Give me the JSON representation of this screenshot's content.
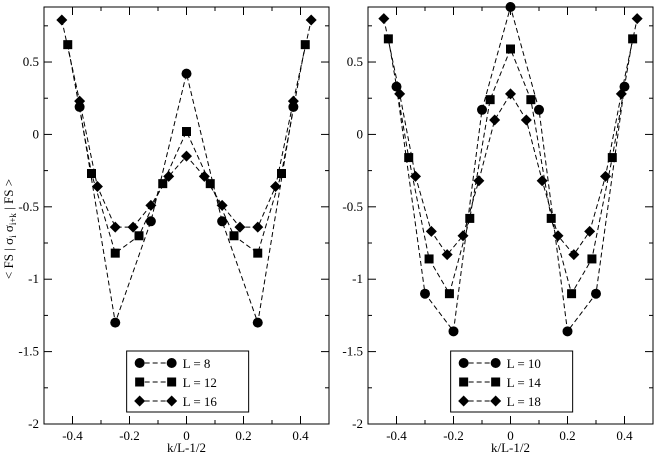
{
  "chart_data": {
    "type": "line",
    "ylabel": "< FS | σ i σ i+k | FS >",
    "ylabel_parts": {
      "pre": "< FS | σ",
      "sub1": "i",
      "mid": " σ",
      "sub2": "i+k",
      "post": " | FS >"
    },
    "panels": [
      {
        "xlabel": "k/L-1/2",
        "xlim": [
          -0.5,
          0.5
        ],
        "ylim": [
          -2,
          0.88
        ],
        "xticks": [
          -0.4,
          -0.2,
          0,
          0.2,
          0.4
        ],
        "xtick_labels": [
          "-0.4",
          "-0.2",
          "0",
          "0.2",
          "0.4"
        ],
        "yticks": [
          -2,
          -1.5,
          -1,
          -0.5,
          0,
          0.5
        ],
        "ytick_labels": [
          "-2",
          "-1.5",
          "-1",
          "-0.5",
          "0",
          "0.5"
        ],
        "legend_position": "bottom-center",
        "series": [
          {
            "name": "L = 8",
            "marker": "circle",
            "x": [
              -0.375,
              -0.25,
              -0.125,
              0,
              0.125,
              0.25,
              0.375
            ],
            "y": [
              0.19,
              -1.3,
              -0.6,
              0.42,
              -0.6,
              -1.3,
              0.19
            ]
          },
          {
            "name": "L = 12",
            "marker": "square",
            "x": [
              -0.41667,
              -0.33333,
              -0.25,
              -0.16667,
              -0.08333,
              0,
              0.08333,
              0.16667,
              0.25,
              0.33333,
              0.41667
            ],
            "y": [
              0.62,
              -0.27,
              -0.82,
              -0.7,
              -0.34,
              0.02,
              -0.34,
              -0.7,
              -0.82,
              -0.27,
              0.62
            ]
          },
          {
            "name": "L = 16",
            "marker": "diamond",
            "x": [
              -0.4375,
              -0.375,
              -0.3125,
              -0.25,
              -0.1875,
              -0.125,
              -0.0625,
              0,
              0.0625,
              0.125,
              0.1875,
              0.25,
              0.3125,
              0.375,
              0.4375
            ],
            "y": [
              0.79,
              0.23,
              -0.36,
              -0.64,
              -0.64,
              -0.49,
              -0.29,
              -0.15,
              -0.29,
              -0.49,
              -0.64,
              -0.64,
              -0.36,
              0.23,
              0.79
            ]
          }
        ]
      },
      {
        "xlabel": "k/L-1/2",
        "xlim": [
          -0.5,
          0.5
        ],
        "ylim": [
          -2,
          0.88
        ],
        "xticks": [
          -0.4,
          -0.2,
          0,
          0.2,
          0.4
        ],
        "xtick_labels": [
          "-0.4",
          "-0.2",
          "0",
          "0.2",
          "0.4"
        ],
        "yticks": [
          -2,
          -1.5,
          -1,
          -0.5,
          0,
          0.5
        ],
        "ytick_labels": [
          "-2",
          "-1.5",
          "-1",
          "-0.5",
          "0",
          "0.5"
        ],
        "legend_position": "bottom-center",
        "series": [
          {
            "name": "L = 10",
            "marker": "circle",
            "x": [
              -0.4,
              -0.3,
              -0.2,
              -0.1,
              0,
              0.1,
              0.2,
              0.3,
              0.4
            ],
            "y": [
              0.33,
              -1.1,
              -1.36,
              0.17,
              0.88,
              0.17,
              -1.36,
              -1.1,
              0.33
            ]
          },
          {
            "name": "L = 14",
            "marker": "square",
            "x": [
              -0.42857,
              -0.35714,
              -0.28571,
              -0.21429,
              -0.14286,
              -0.07143,
              0,
              0.07143,
              0.14286,
              0.21429,
              0.28571,
              0.35714,
              0.42857
            ],
            "y": [
              0.66,
              -0.16,
              -0.86,
              -1.1,
              -0.58,
              0.24,
              0.59,
              0.24,
              -0.58,
              -1.1,
              -0.86,
              -0.16,
              0.66
            ]
          },
          {
            "name": "L = 18",
            "marker": "diamond",
            "x": [
              -0.44444,
              -0.38889,
              -0.33333,
              -0.27778,
              -0.22222,
              -0.16667,
              -0.11111,
              -0.05556,
              0,
              0.05556,
              0.11111,
              0.16667,
              0.22222,
              0.27778,
              0.33333,
              0.38889,
              0.44444
            ],
            "y": [
              0.8,
              0.28,
              -0.29,
              -0.67,
              -0.83,
              -0.7,
              -0.32,
              0.1,
              0.28,
              0.1,
              -0.32,
              -0.7,
              -0.83,
              -0.67,
              -0.29,
              0.28,
              0.8
            ]
          }
        ]
      }
    ]
  }
}
